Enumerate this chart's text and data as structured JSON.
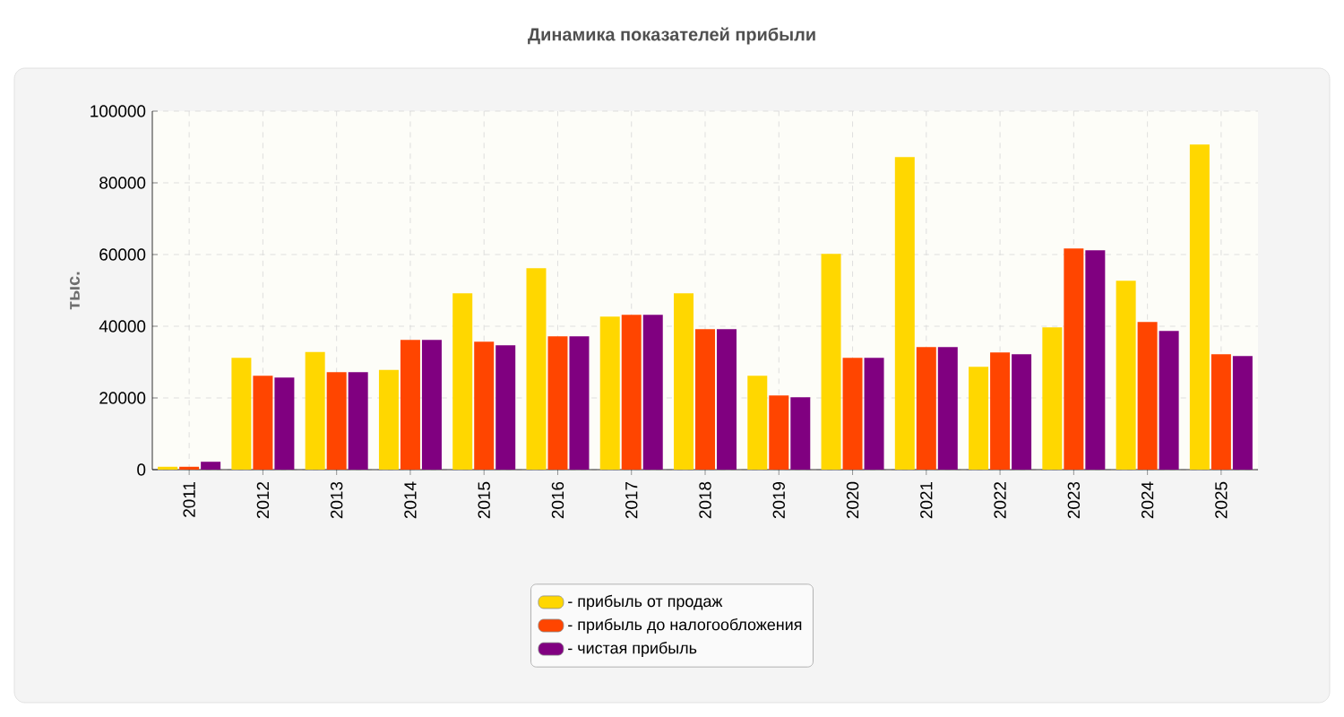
{
  "chart_data": {
    "type": "bar",
    "title": "Динамика показателей прибыли",
    "ylabel": "тыс.",
    "categories": [
      "2011",
      "2012",
      "2013",
      "2014",
      "2015",
      "2016",
      "2017",
      "2018",
      "2019",
      "2020",
      "2021",
      "2022",
      "2023",
      "2024",
      "2025"
    ],
    "series": [
      {
        "name": "- прибыль от продаж",
        "color": "#ffd700",
        "values": [
          800,
          31200,
          32800,
          27800,
          49200,
          56200,
          42700,
          49200,
          26200,
          60200,
          87200,
          28700,
          39700,
          52700,
          90700
        ]
      },
      {
        "name": "- прибыль до налогообложения",
        "color": "#ff4500",
        "values": [
          800,
          26200,
          27200,
          36200,
          35700,
          37200,
          43200,
          39200,
          20700,
          31200,
          34200,
          32700,
          61700,
          41200,
          32200
        ]
      },
      {
        "name": "- чистая прибыль",
        "color": "#800080",
        "values": [
          2200,
          25700,
          27200,
          36200,
          34700,
          37200,
          43200,
          39200,
          20200,
          31200,
          34200,
          32200,
          61200,
          38700,
          31700
        ]
      }
    ],
    "ylim": [
      0,
      100000
    ],
    "yticks": [
      0,
      20000,
      40000,
      60000,
      80000,
      100000
    ],
    "grid": true,
    "legend": "bottom"
  }
}
